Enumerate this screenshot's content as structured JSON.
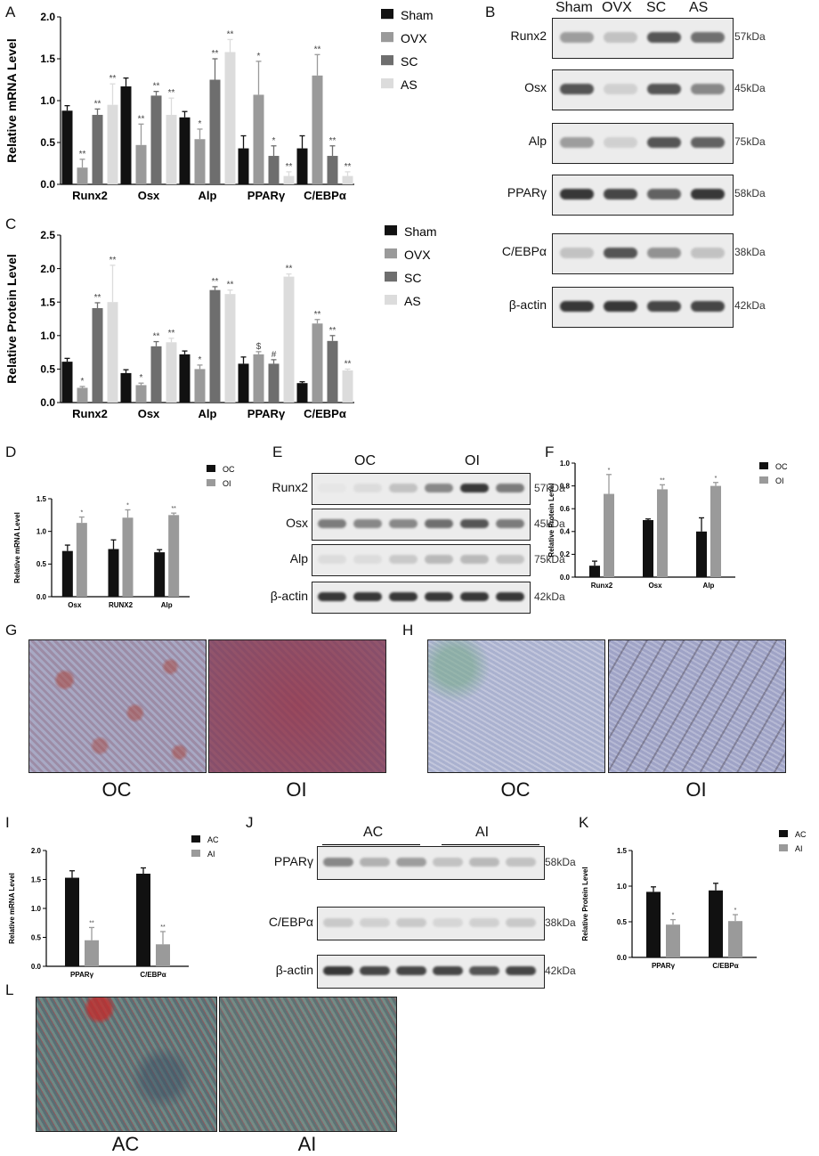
{
  "panels": {
    "A": "A",
    "B": "B",
    "C": "C",
    "D": "D",
    "E": "E",
    "F": "F",
    "G": "G",
    "H": "H",
    "I": "I",
    "J": "J",
    "K": "K",
    "L": "L"
  },
  "legend_main": [
    "Sham",
    "OVX",
    "SC",
    "AS"
  ],
  "colors": {
    "Sham": "#111111",
    "OVX": "#9a9a9a",
    "SC": "#6e6e6e",
    "AS": "#dcdcdc",
    "OC": "#111111",
    "OI": "#9a9a9a",
    "AC": "#111111",
    "AI": "#9a9a9a"
  },
  "chart_data": [
    {
      "id": "A",
      "type": "bar",
      "ylabel": "Relative mRNA Level",
      "categories": [
        "Runx2",
        "Osx",
        "Alp",
        "PPARγ",
        "C/EBPα"
      ],
      "ylim": [
        0,
        2.0
      ],
      "yticks": [
        "0.0",
        "0.5",
        "1.0",
        "1.5",
        "2.0"
      ],
      "series": [
        {
          "name": "Sham",
          "values": [
            0.88,
            1.17,
            0.8,
            0.43,
            0.43
          ],
          "errors": [
            0.06,
            0.1,
            0.07,
            0.15,
            0.15
          ],
          "marks": [
            "",
            "",
            "",
            "",
            ""
          ]
        },
        {
          "name": "OVX",
          "values": [
            0.2,
            0.47,
            0.54,
            1.07,
            1.3
          ],
          "errors": [
            0.1,
            0.25,
            0.12,
            0.4,
            0.25
          ],
          "marks": [
            "**",
            "**",
            "*",
            "*",
            "**"
          ]
        },
        {
          "name": "SC",
          "values": [
            0.83,
            1.06,
            1.25,
            0.34,
            0.34
          ],
          "errors": [
            0.07,
            0.05,
            0.25,
            0.12,
            0.12
          ],
          "marks": [
            "**",
            "**",
            "**",
            "*",
            "**"
          ]
        },
        {
          "name": "AS",
          "values": [
            0.95,
            0.83,
            1.58,
            0.1,
            0.1
          ],
          "errors": [
            0.25,
            0.2,
            0.15,
            0.05,
            0.05
          ],
          "marks": [
            "**",
            "**",
            "**",
            "**",
            "**"
          ]
        }
      ]
    },
    {
      "id": "C",
      "type": "bar",
      "ylabel": "Relative Protein Level",
      "categories": [
        "Runx2",
        "Osx",
        "Alp",
        "PPARγ",
        "C/EBPα"
      ],
      "ylim": [
        0,
        2.5
      ],
      "yticks": [
        "0.0",
        "0.5",
        "1.0",
        "1.5",
        "2.0",
        "2.5"
      ],
      "series": [
        {
          "name": "Sham",
          "values": [
            0.61,
            0.44,
            0.72,
            0.58,
            0.29
          ],
          "errors": [
            0.05,
            0.05,
            0.05,
            0.1,
            0.02
          ],
          "marks": [
            "",
            "",
            "",
            "",
            ""
          ]
        },
        {
          "name": "OVX",
          "values": [
            0.22,
            0.26,
            0.5,
            0.72,
            1.18
          ],
          "errors": [
            0.02,
            0.03,
            0.06,
            0.04,
            0.06
          ],
          "marks": [
            "*",
            "*",
            "*",
            "$",
            "**"
          ]
        },
        {
          "name": "SC",
          "values": [
            1.41,
            0.84,
            1.68,
            0.58,
            0.92
          ],
          "errors": [
            0.08,
            0.07,
            0.05,
            0.06,
            0.08
          ],
          "marks": [
            "**",
            "**",
            "**",
            "#",
            "**"
          ]
        },
        {
          "name": "AS",
          "values": [
            1.5,
            0.9,
            1.62,
            1.88,
            0.48
          ],
          "errors": [
            0.55,
            0.06,
            0.06,
            0.04,
            0.02
          ],
          "marks": [
            "**",
            "**",
            "**",
            "**",
            "**"
          ]
        }
      ]
    },
    {
      "id": "D",
      "type": "bar",
      "ylabel": "Relative mRNA Level",
      "categories": [
        "Osx",
        "RUNX2",
        "Alp"
      ],
      "ylim": [
        0,
        1.5
      ],
      "yticks": [
        "0.0",
        "0.5",
        "1.0",
        "1.5"
      ],
      "series": [
        {
          "name": "OC",
          "values": [
            0.7,
            0.73,
            0.68
          ],
          "errors": [
            0.09,
            0.14,
            0.04
          ],
          "marks": [
            "",
            "",
            ""
          ]
        },
        {
          "name": "OI",
          "values": [
            1.13,
            1.21,
            1.25
          ],
          "errors": [
            0.09,
            0.12,
            0.03
          ],
          "marks": [
            "*",
            "*",
            "**"
          ]
        }
      ]
    },
    {
      "id": "F",
      "type": "bar",
      "ylabel": "Relative Protein Level",
      "categories": [
        "Runx2",
        "Osx",
        "Alp"
      ],
      "ylim": [
        0,
        1.0
      ],
      "yticks": [
        "0.0",
        "0.2",
        "0.4",
        "0.6",
        "0.8",
        "1.0"
      ],
      "series": [
        {
          "name": "OC",
          "values": [
            0.1,
            0.5,
            0.4
          ],
          "errors": [
            0.04,
            0.01,
            0.12
          ],
          "marks": [
            "",
            "",
            ""
          ]
        },
        {
          "name": "OI",
          "values": [
            0.73,
            0.77,
            0.8
          ],
          "errors": [
            0.17,
            0.04,
            0.03
          ],
          "marks": [
            "*",
            "**",
            "*"
          ]
        }
      ]
    },
    {
      "id": "I",
      "type": "bar",
      "ylabel": "Relative mRNA Level",
      "categories": [
        "PPARγ",
        "C/EBPα"
      ],
      "ylim": [
        0,
        2.0
      ],
      "yticks": [
        "0.0",
        "0.5",
        "1.0",
        "1.5",
        "2.0"
      ],
      "series": [
        {
          "name": "AC",
          "values": [
            1.53,
            1.6
          ],
          "errors": [
            0.12,
            0.1
          ],
          "marks": [
            "",
            ""
          ]
        },
        {
          "name": "AI",
          "values": [
            0.45,
            0.38
          ],
          "errors": [
            0.22,
            0.22
          ],
          "marks": [
            "**",
            "**"
          ]
        }
      ]
    },
    {
      "id": "K",
      "type": "bar",
      "ylabel": "Relative Protein Level",
      "categories": [
        "PPARγ",
        "C/EBPα"
      ],
      "ylim": [
        0,
        1.5
      ],
      "yticks": [
        "0.0",
        "0.5",
        "1.0",
        "1.5"
      ],
      "series": [
        {
          "name": "AC",
          "values": [
            0.92,
            0.94
          ],
          "errors": [
            0.07,
            0.1
          ],
          "marks": [
            "",
            ""
          ]
        },
        {
          "name": "AI",
          "values": [
            0.46,
            0.51
          ],
          "errors": [
            0.07,
            0.09
          ],
          "marks": [
            "*",
            "*"
          ]
        }
      ]
    }
  ],
  "blotB": {
    "lanes": [
      "Sham",
      "OVX",
      "SC",
      "AS"
    ],
    "rows": [
      {
        "label": "Runx2",
        "kda": "57kDa",
        "intensity": [
          0.55,
          0.35,
          0.85,
          0.75
        ]
      },
      {
        "label": "Osx",
        "kda": "45kDa",
        "intensity": [
          0.85,
          0.25,
          0.85,
          0.65
        ]
      },
      {
        "label": "Alp",
        "kda": "75kDa",
        "intensity": [
          0.55,
          0.25,
          0.85,
          0.8
        ]
      },
      {
        "label": "PPARγ",
        "kda": "58kDa",
        "intensity": [
          0.95,
          0.9,
          0.8,
          0.95
        ]
      },
      {
        "label": "C/EBPα",
        "kda": "38kDa",
        "intensity": [
          0.35,
          0.85,
          0.6,
          0.35
        ]
      },
      {
        "label": "β-actin",
        "kda": "42kDa",
        "intensity": [
          0.95,
          0.95,
          0.9,
          0.9
        ]
      }
    ]
  },
  "blotE": {
    "groups": [
      "OC",
      "OI"
    ],
    "rows": [
      {
        "label": "Runx2",
        "kda": "57kDa",
        "intensity": [
          0.05,
          0.15,
          0.35,
          0.65,
          0.95,
          0.7
        ]
      },
      {
        "label": "Osx",
        "kda": "45kDa",
        "intensity": [
          0.7,
          0.65,
          0.65,
          0.75,
          0.85,
          0.7
        ]
      },
      {
        "label": "Alp",
        "kda": "75kDa",
        "intensity": [
          0.15,
          0.15,
          0.3,
          0.4,
          0.4,
          0.35
        ]
      },
      {
        "label": "β-actin",
        "kda": "42kDa",
        "intensity": [
          0.95,
          0.95,
          0.95,
          0.95,
          0.95,
          0.95
        ]
      }
    ]
  },
  "blotJ": {
    "groups": [
      "AC",
      "AI"
    ],
    "rows": [
      {
        "label": "PPARγ",
        "kda": "58kDa",
        "intensity": [
          0.65,
          0.45,
          0.55,
          0.35,
          0.4,
          0.35
        ]
      },
      {
        "label": "C/EBPα",
        "kda": "38kDa",
        "intensity": [
          0.3,
          0.25,
          0.3,
          0.2,
          0.25,
          0.3
        ]
      },
      {
        "label": "β-actin",
        "kda": "42kDa",
        "intensity": [
          0.95,
          0.9,
          0.9,
          0.9,
          0.85,
          0.9
        ]
      }
    ]
  },
  "captions": {
    "G": [
      "OC",
      "OI"
    ],
    "H": [
      "OC",
      "OI"
    ],
    "L": [
      "AC",
      "AI"
    ]
  }
}
